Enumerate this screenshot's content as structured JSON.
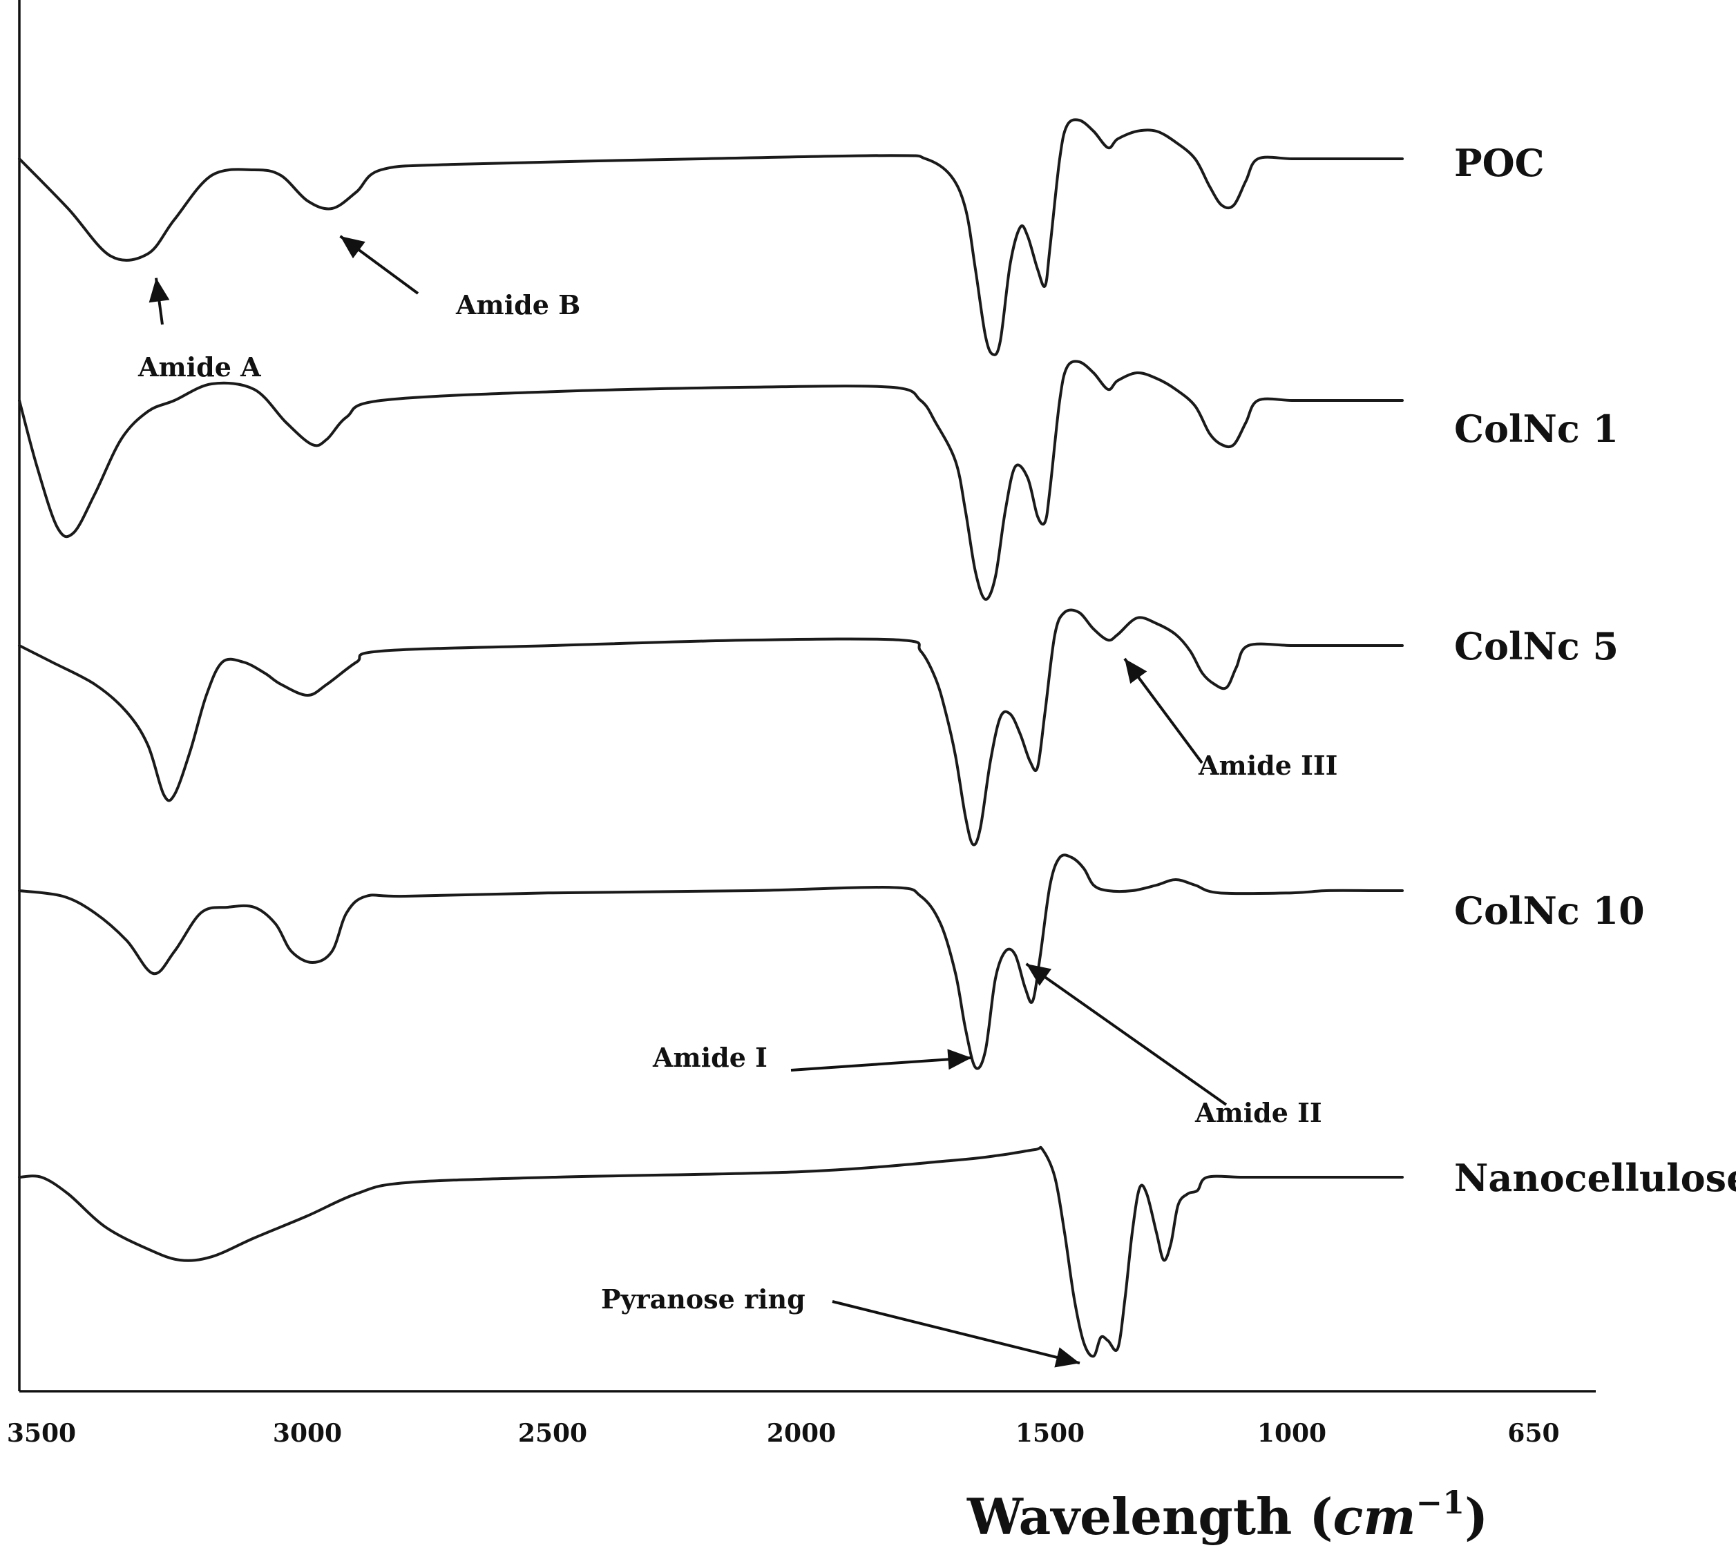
{
  "chart_data": {
    "type": "line",
    "title": "",
    "xlabel_main": "Wavelength (",
    "xlabel_unit": "cm",
    "xlabel_power": "−1",
    "xlabel_close": ")",
    "ylabel": "",
    "y_axis_ticks": false,
    "grid": false,
    "legend": "labels at right end of each trace",
    "x_ticks": [
      "3500",
      "3000",
      "2500",
      "2000",
      "1500",
      "1000",
      "650"
    ],
    "series": [
      {
        "name": "POC",
        "points": [
          [
            3550,
            0.0
          ],
          [
            3450,
            -0.45
          ],
          [
            3370,
            -0.88
          ],
          [
            3300,
            -0.86
          ],
          [
            3250,
            -0.55
          ],
          [
            3180,
            -0.15
          ],
          [
            3100,
            -0.1
          ],
          [
            3050,
            -0.15
          ],
          [
            3000,
            -0.38
          ],
          [
            2950,
            -0.45
          ],
          [
            2900,
            -0.3
          ],
          [
            2850,
            -0.1
          ],
          [
            2700,
            -0.05
          ],
          [
            2200,
            0.0
          ],
          [
            1820,
            0.03
          ],
          [
            1750,
            0.0
          ],
          [
            1700,
            -0.15
          ],
          [
            1670,
            -0.45
          ],
          [
            1650,
            -1.0
          ],
          [
            1630,
            -1.6
          ],
          [
            1615,
            -1.77
          ],
          [
            1600,
            -1.65
          ],
          [
            1580,
            -0.95
          ],
          [
            1560,
            -0.62
          ],
          [
            1545,
            -0.7
          ],
          [
            1525,
            -1.0
          ],
          [
            1510,
            -1.15
          ],
          [
            1500,
            -0.8
          ],
          [
            1480,
            0.0
          ],
          [
            1465,
            0.3
          ],
          [
            1440,
            0.35
          ],
          [
            1410,
            0.25
          ],
          [
            1380,
            0.1
          ],
          [
            1360,
            0.18
          ],
          [
            1320,
            0.25
          ],
          [
            1280,
            0.25
          ],
          [
            1240,
            0.15
          ],
          [
            1200,
            0.0
          ],
          [
            1170,
            -0.25
          ],
          [
            1145,
            -0.42
          ],
          [
            1120,
            -0.42
          ],
          [
            1095,
            -0.2
          ],
          [
            1070,
            0.0
          ],
          [
            1000,
            0.0
          ],
          [
            950,
            0.0
          ],
          [
            880,
            0.0
          ],
          [
            840,
            0.0
          ]
        ]
      },
      {
        "name": "ColNc 1",
        "points": [
          [
            3550,
            0.0
          ],
          [
            3510,
            -0.6
          ],
          [
            3470,
            -1.15
          ],
          [
            3440,
            -1.2
          ],
          [
            3400,
            -0.85
          ],
          [
            3350,
            -0.35
          ],
          [
            3300,
            -0.1
          ],
          [
            3250,
            0.0
          ],
          [
            3180,
            0.15
          ],
          [
            3100,
            0.1
          ],
          [
            3040,
            -0.2
          ],
          [
            2990,
            -0.4
          ],
          [
            2960,
            -0.35
          ],
          [
            2920,
            -0.15
          ],
          [
            2850,
            0.0
          ],
          [
            2500,
            0.08
          ],
          [
            2100,
            0.12
          ],
          [
            1820,
            0.12
          ],
          [
            1760,
            0.0
          ],
          [
            1730,
            -0.2
          ],
          [
            1690,
            -0.55
          ],
          [
            1670,
            -1.0
          ],
          [
            1650,
            -1.55
          ],
          [
            1630,
            -1.8
          ],
          [
            1610,
            -1.6
          ],
          [
            1590,
            -1.0
          ],
          [
            1570,
            -0.6
          ],
          [
            1545,
            -0.7
          ],
          [
            1525,
            -1.05
          ],
          [
            1510,
            -1.1
          ],
          [
            1500,
            -0.8
          ],
          [
            1480,
            0.0
          ],
          [
            1465,
            0.3
          ],
          [
            1440,
            0.35
          ],
          [
            1410,
            0.25
          ],
          [
            1380,
            0.1
          ],
          [
            1360,
            0.18
          ],
          [
            1320,
            0.25
          ],
          [
            1280,
            0.2
          ],
          [
            1240,
            0.1
          ],
          [
            1200,
            -0.05
          ],
          [
            1170,
            -0.3
          ],
          [
            1145,
            -0.4
          ],
          [
            1120,
            -0.4
          ],
          [
            1095,
            -0.2
          ],
          [
            1070,
            0.0
          ],
          [
            1000,
            0.0
          ],
          [
            950,
            0.0
          ],
          [
            880,
            0.0
          ],
          [
            840,
            0.0
          ]
        ]
      },
      {
        "name": "ColNc 5",
        "points": [
          [
            3550,
            0.0
          ],
          [
            3480,
            -0.15
          ],
          [
            3400,
            -0.35
          ],
          [
            3340,
            -0.6
          ],
          [
            3300,
            -0.9
          ],
          [
            3270,
            -1.35
          ],
          [
            3250,
            -1.35
          ],
          [
            3220,
            -0.95
          ],
          [
            3190,
            -0.45
          ],
          [
            3160,
            -0.15
          ],
          [
            3120,
            -0.15
          ],
          [
            3080,
            -0.25
          ],
          [
            3050,
            -0.35
          ],
          [
            3000,
            -0.45
          ],
          [
            2960,
            -0.35
          ],
          [
            2900,
            -0.15
          ],
          [
            2850,
            -0.05
          ],
          [
            2500,
            0.0
          ],
          [
            2100,
            0.05
          ],
          [
            1800,
            0.05
          ],
          [
            1760,
            -0.05
          ],
          [
            1730,
            -0.3
          ],
          [
            1710,
            -0.6
          ],
          [
            1690,
            -1.0
          ],
          [
            1670,
            -1.55
          ],
          [
            1655,
            -1.8
          ],
          [
            1640,
            -1.65
          ],
          [
            1620,
            -1.05
          ],
          [
            1600,
            -0.65
          ],
          [
            1580,
            -0.62
          ],
          [
            1560,
            -0.8
          ],
          [
            1540,
            -1.05
          ],
          [
            1525,
            -1.1
          ],
          [
            1510,
            -0.6
          ],
          [
            1490,
            0.1
          ],
          [
            1470,
            0.3
          ],
          [
            1440,
            0.3
          ],
          [
            1410,
            0.15
          ],
          [
            1380,
            0.05
          ],
          [
            1360,
            0.1
          ],
          [
            1320,
            0.25
          ],
          [
            1280,
            0.2
          ],
          [
            1240,
            0.1
          ],
          [
            1210,
            -0.05
          ],
          [
            1185,
            -0.25
          ],
          [
            1160,
            -0.35
          ],
          [
            1135,
            -0.38
          ],
          [
            1115,
            -0.2
          ],
          [
            1090,
            0.0
          ],
          [
            1000,
            0.0
          ],
          [
            950,
            0.0
          ],
          [
            880,
            0.0
          ],
          [
            840,
            0.0
          ]
        ]
      },
      {
        "name": "ColNc 10",
        "points": [
          [
            3550,
            0.0
          ],
          [
            3460,
            -0.05
          ],
          [
            3400,
            -0.2
          ],
          [
            3340,
            -0.45
          ],
          [
            3290,
            -0.75
          ],
          [
            3250,
            -0.55
          ],
          [
            3200,
            -0.2
          ],
          [
            3150,
            -0.15
          ],
          [
            3100,
            -0.15
          ],
          [
            3060,
            -0.3
          ],
          [
            3030,
            -0.55
          ],
          [
            2990,
            -0.65
          ],
          [
            2950,
            -0.55
          ],
          [
            2920,
            -0.2
          ],
          [
            2880,
            -0.05
          ],
          [
            2800,
            -0.05
          ],
          [
            2500,
            -0.02
          ],
          [
            2100,
            0.0
          ],
          [
            1820,
            0.03
          ],
          [
            1760,
            -0.05
          ],
          [
            1720,
            -0.3
          ],
          [
            1690,
            -0.75
          ],
          [
            1670,
            -1.25
          ],
          [
            1650,
            -1.6
          ],
          [
            1630,
            -1.45
          ],
          [
            1610,
            -0.8
          ],
          [
            1590,
            -0.55
          ],
          [
            1570,
            -0.58
          ],
          [
            1550,
            -0.88
          ],
          [
            1535,
            -1.0
          ],
          [
            1520,
            -0.6
          ],
          [
            1500,
            0.05
          ],
          [
            1480,
            0.3
          ],
          [
            1455,
            0.3
          ],
          [
            1430,
            0.2
          ],
          [
            1410,
            0.05
          ],
          [
            1380,
            0.0
          ],
          [
            1330,
            0.0
          ],
          [
            1280,
            0.05
          ],
          [
            1240,
            0.1
          ],
          [
            1200,
            0.05
          ],
          [
            1150,
            -0.02
          ],
          [
            1000,
            -0.02
          ],
          [
            950,
            0.0
          ],
          [
            880,
            0.0
          ],
          [
            840,
            0.0
          ]
        ]
      },
      {
        "name": "Nanocellulose",
        "points": [
          [
            3550,
            0.0
          ],
          [
            3500,
            0.0
          ],
          [
            3450,
            -0.15
          ],
          [
            3380,
            -0.45
          ],
          [
            3300,
            -0.65
          ],
          [
            3240,
            -0.75
          ],
          [
            3180,
            -0.72
          ],
          [
            3100,
            -0.55
          ],
          [
            3000,
            -0.35
          ],
          [
            2900,
            -0.15
          ],
          [
            2800,
            -0.05
          ],
          [
            2500,
            0.0
          ],
          [
            2000,
            0.05
          ],
          [
            1700,
            0.15
          ],
          [
            1600,
            0.2
          ],
          [
            1530,
            0.25
          ],
          [
            1515,
            0.25
          ],
          [
            1490,
            0.0
          ],
          [
            1470,
            -0.5
          ],
          [
            1450,
            -1.1
          ],
          [
            1430,
            -1.5
          ],
          [
            1410,
            -1.62
          ],
          [
            1395,
            -1.45
          ],
          [
            1380,
            -1.48
          ],
          [
            1360,
            -1.55
          ],
          [
            1345,
            -1.1
          ],
          [
            1330,
            -0.5
          ],
          [
            1315,
            -0.1
          ],
          [
            1300,
            -0.15
          ],
          [
            1280,
            -0.5
          ],
          [
            1265,
            -0.75
          ],
          [
            1250,
            -0.6
          ],
          [
            1235,
            -0.25
          ],
          [
            1215,
            -0.15
          ],
          [
            1195,
            -0.12
          ],
          [
            1175,
            0.0
          ],
          [
            1100,
            0.0
          ],
          [
            1000,
            0.0
          ],
          [
            950,
            0.0
          ],
          [
            880,
            0.0
          ],
          [
            840,
            0.0
          ]
        ]
      }
    ],
    "annotations": [
      {
        "label": "Amide A",
        "series": "POC",
        "target_x": 3300
      },
      {
        "label": "Amide B",
        "series": "POC",
        "target_x": 2950
      },
      {
        "label": "Amide III",
        "series": "ColNc 5",
        "target_x": 1360
      },
      {
        "label": "Amide I",
        "series": "ColNc 10",
        "target_x": 1630
      },
      {
        "label": "Amide II",
        "series": "ColNc 10",
        "target_x": 1520
      },
      {
        "label": "Pyranose ring",
        "series": "Nanocellulose",
        "target_x": 1410
      }
    ]
  }
}
